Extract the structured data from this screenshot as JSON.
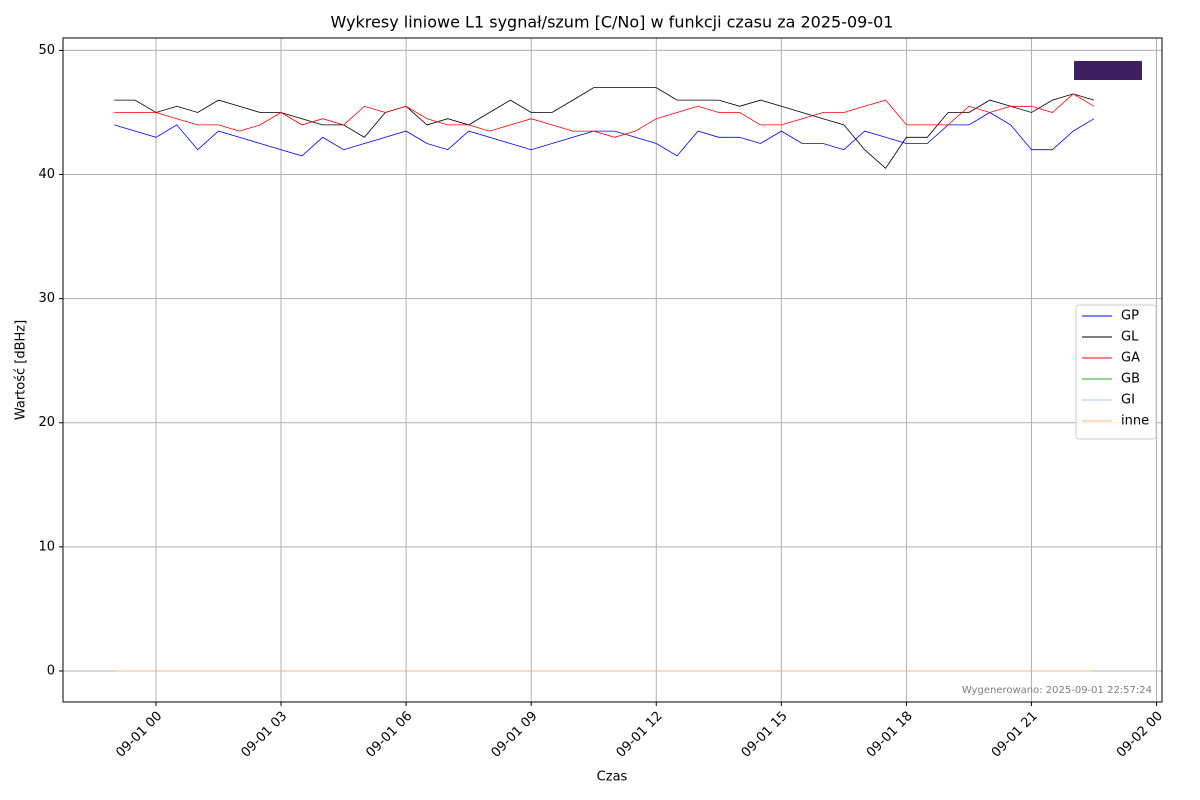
{
  "chart_data": {
    "type": "line",
    "title": "Wykresy liniowe L1 sygnał/szum [C/No] w funkcji czasu za 2025-09-01",
    "x_label": "Czas",
    "y_label": "Wartość [dBHz]",
    "annotation": "Wygenerowano: 2025-09-01 22:57:24",
    "x": [
      -1,
      -0.5,
      0,
      0.5,
      1,
      1.5,
      2,
      2.5,
      3,
      3.5,
      4,
      4.5,
      5,
      5.5,
      6,
      6.5,
      7,
      7.5,
      8,
      8.5,
      9,
      9.5,
      10,
      10.5,
      11,
      11.5,
      12,
      12.5,
      13,
      13.5,
      14,
      14.5,
      15,
      15.5,
      16,
      16.5,
      17,
      17.5,
      18,
      18.5,
      19,
      19.5,
      20,
      20.5,
      21,
      21.5,
      22,
      22.5
    ],
    "series": [
      {
        "name": "GP",
        "color": "#0000ff",
        "values": [
          44,
          43.5,
          43,
          44,
          42,
          43.5,
          43,
          42.5,
          42,
          41.5,
          43,
          42,
          42.5,
          43,
          43.5,
          42.5,
          42,
          43.5,
          43,
          42.5,
          42,
          42.5,
          43,
          43.5,
          43.5,
          43,
          42.5,
          41.5,
          43.5,
          43,
          43,
          42.5,
          43.5,
          42.5,
          42.5,
          42,
          43.5,
          43,
          42.5,
          42.5,
          44,
          44,
          45,
          44,
          42,
          42,
          43.5,
          44.5
        ]
      },
      {
        "name": "GL",
        "color": "#000000",
        "values": [
          46,
          46,
          45,
          45.5,
          45,
          46,
          45.5,
          45,
          45,
          44.5,
          44,
          44,
          43,
          45,
          45.5,
          44,
          44.5,
          44,
          45,
          46,
          45,
          45,
          46,
          47,
          47,
          47,
          47,
          46,
          46,
          46,
          45.5,
          46,
          45.5,
          45,
          44.5,
          44,
          42,
          40.5,
          43,
          43,
          45,
          45,
          46,
          45.5,
          45,
          46,
          46.5,
          46
        ]
      },
      {
        "name": "GA",
        "color": "#ff0000",
        "values": [
          45,
          45,
          45,
          44.5,
          44,
          44,
          43.5,
          44,
          45,
          44,
          44.5,
          44,
          45.5,
          45,
          45.5,
          44.5,
          44,
          44,
          43.5,
          44,
          44.5,
          44,
          43.5,
          43.5,
          43,
          43.5,
          44.5,
          45,
          45.5,
          45,
          45,
          44,
          44,
          44.5,
          45,
          45,
          45.5,
          46,
          44,
          44,
          44,
          45.5,
          45,
          45.5,
          45.5,
          45,
          46.5,
          45.5
        ]
      },
      {
        "name": "GB",
        "color": "#2ca02c",
        "values": [
          0,
          0,
          0,
          0,
          0,
          0,
          0,
          0,
          0,
          0,
          0,
          0,
          0,
          0,
          0,
          0,
          0,
          0,
          0,
          0,
          0,
          0,
          0,
          0,
          0,
          0,
          0,
          0,
          0,
          0,
          0,
          0,
          0,
          0,
          0,
          0,
          0,
          0,
          0,
          0,
          0,
          0,
          0,
          0,
          0,
          0,
          0,
          0
        ]
      },
      {
        "name": "GI",
        "color": "#aec7e8",
        "values": [
          0,
          0,
          0,
          0,
          0,
          0,
          0,
          0,
          0,
          0,
          0,
          0,
          0,
          0,
          0,
          0,
          0,
          0,
          0,
          0,
          0,
          0,
          0,
          0,
          0,
          0,
          0,
          0,
          0,
          0,
          0,
          0,
          0,
          0,
          0,
          0,
          0,
          0,
          0,
          0,
          0,
          0,
          0,
          0,
          0,
          0,
          0,
          0
        ]
      },
      {
        "name": "inne",
        "color": "#ffbb78",
        "values": [
          0,
          0,
          0,
          0,
          0,
          0,
          0,
          0,
          0,
          0,
          0,
          0,
          0,
          0,
          0,
          0,
          0,
          0,
          0,
          0,
          0,
          0,
          0,
          0,
          0,
          0,
          0,
          0,
          0,
          0,
          0,
          0,
          0,
          0,
          0,
          0,
          0,
          0,
          0,
          0,
          0,
          0,
          0,
          0,
          0,
          0,
          0,
          0
        ]
      }
    ],
    "xlim": [
      -2.23,
      24.13
    ],
    "xticks": [
      {
        "value": 0,
        "label": "09-01 00"
      },
      {
        "value": 3,
        "label": "09-01 03"
      },
      {
        "value": 6,
        "label": "09-01 06"
      },
      {
        "value": 9,
        "label": "09-01 09"
      },
      {
        "value": 12,
        "label": "09-01 12"
      },
      {
        "value": 15,
        "label": "09-01 15"
      },
      {
        "value": 18,
        "label": "09-01 18"
      },
      {
        "value": 21,
        "label": "09-01 21"
      },
      {
        "value": 24,
        "label": "09-02 00"
      }
    ],
    "ylim": [
      -2.5,
      51
    ],
    "yticks": [
      0,
      10,
      20,
      30,
      40,
      50
    ],
    "grid": true,
    "legend": "right"
  }
}
